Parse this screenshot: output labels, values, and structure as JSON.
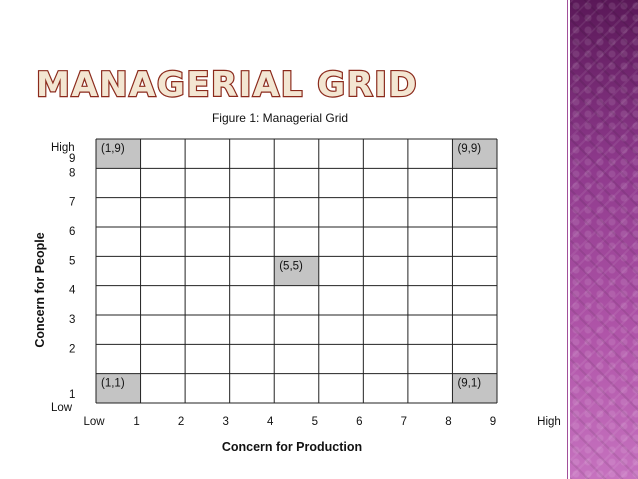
{
  "slide": {
    "title": "MANAGERIAL GRID",
    "title_fill": "#f3e6d2",
    "title_stroke": "#8b2a1c",
    "panel_color": "#8a2f86"
  },
  "figure": {
    "caption": "Figure 1: Managerial Grid",
    "x_axis_title": "Concern for Production",
    "y_axis_title": "Concern for People",
    "x_low": "Low",
    "x_high": "High",
    "y_low": "Low",
    "y_high": "High",
    "x_ticks": [
      "1",
      "2",
      "3",
      "4",
      "5",
      "6",
      "7",
      "8",
      "9"
    ],
    "y_ticks": [
      "1",
      "2",
      "3",
      "4",
      "5",
      "6",
      "7",
      "8",
      "9"
    ],
    "columns": 9,
    "rows": 9,
    "highlight_color": "#c4c4c4",
    "highlights": [
      {
        "col": 1,
        "row": 9,
        "label": "(1,9)"
      },
      {
        "col": 9,
        "row": 9,
        "label": "(9,9)"
      },
      {
        "col": 5,
        "row": 5,
        "label": "(5,5)"
      },
      {
        "col": 1,
        "row": 1,
        "label": "(1,1)"
      },
      {
        "col": 9,
        "row": 1,
        "label": "(9,1)"
      }
    ]
  }
}
